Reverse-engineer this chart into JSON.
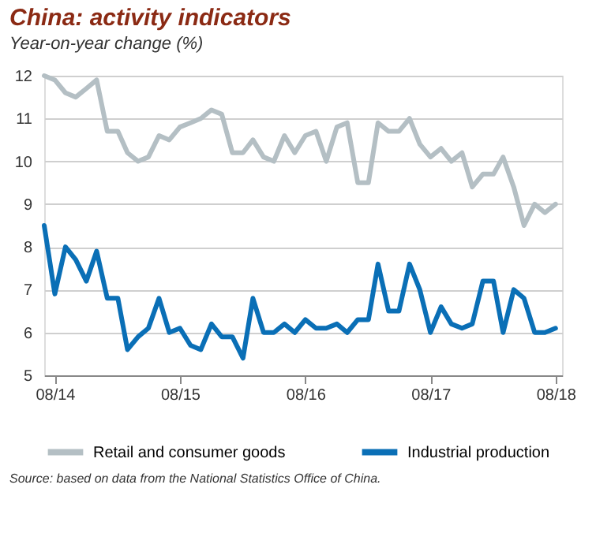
{
  "chart_data": {
    "type": "line",
    "title": "China: activity indicators",
    "subtitle": "Year-on-year change (%)",
    "x": [
      "2014-07",
      "2014-08",
      "2014-09",
      "2014-10",
      "2014-11",
      "2014-12",
      "2015-01",
      "2015-02",
      "2015-03",
      "2015-04",
      "2015-05",
      "2015-06",
      "2015-07",
      "2015-08",
      "2015-09",
      "2015-10",
      "2015-11",
      "2015-12",
      "2016-01",
      "2016-02",
      "2016-03",
      "2016-04",
      "2016-05",
      "2016-06",
      "2016-07",
      "2016-08",
      "2016-09",
      "2016-10",
      "2016-11",
      "2016-12",
      "2017-01",
      "2017-02",
      "2017-03",
      "2017-04",
      "2017-05",
      "2017-06",
      "2017-07",
      "2017-08",
      "2017-09",
      "2017-10",
      "2017-11",
      "2017-12",
      "2018-01",
      "2018-02",
      "2018-03",
      "2018-04",
      "2018-05",
      "2018-06",
      "2018-07",
      "2018-08"
    ],
    "series": [
      {
        "name": "Retail and consumer goods",
        "color": "#b4bfc4",
        "values": [
          12.0,
          11.9,
          11.6,
          11.5,
          11.7,
          11.9,
          10.7,
          10.7,
          10.2,
          10.0,
          10.1,
          10.6,
          10.5,
          10.8,
          10.9,
          11.0,
          11.2,
          11.1,
          10.2,
          10.2,
          10.5,
          10.1,
          10.0,
          10.6,
          10.2,
          10.6,
          10.7,
          10.0,
          10.8,
          10.9,
          9.5,
          9.5,
          10.9,
          10.7,
          10.7,
          11.0,
          10.4,
          10.1,
          10.3,
          10.0,
          10.2,
          9.4,
          9.7,
          9.7,
          10.1,
          9.4,
          8.5,
          9.0,
          8.8,
          9.0
        ]
      },
      {
        "name": "Industrial production",
        "color": "#0a6fb6",
        "values": [
          8.5,
          6.9,
          8.0,
          7.7,
          7.2,
          7.9,
          6.8,
          6.8,
          5.6,
          5.9,
          6.1,
          6.8,
          6.0,
          6.1,
          5.7,
          5.6,
          6.2,
          5.9,
          5.9,
          5.4,
          6.8,
          6.0,
          6.0,
          6.2,
          6.0,
          6.3,
          6.1,
          6.1,
          6.2,
          6.0,
          6.3,
          6.3,
          7.6,
          6.5,
          6.5,
          7.6,
          7.0,
          6.0,
          6.6,
          6.2,
          6.1,
          6.2,
          7.2,
          7.2,
          6.0,
          7.0,
          6.8,
          6.0,
          6.0,
          6.1
        ]
      }
    ],
    "xlim": [
      "2014-07",
      "2018-08-20"
    ],
    "xticks": [
      {
        "value": "2014-08",
        "label": "08/14"
      },
      {
        "value": "2015-08",
        "label": "08/15"
      },
      {
        "value": "2016-08",
        "label": "08/16"
      },
      {
        "value": "2017-08",
        "label": "08/17"
      },
      {
        "value": "2018-08",
        "label": "08/18"
      }
    ],
    "ylim": [
      5,
      12
    ],
    "yticks": [
      5,
      6,
      7,
      8,
      9,
      10,
      11,
      12
    ],
    "grid": "y",
    "legend": "bottom",
    "marker": "none",
    "line_style": "solid",
    "annotations": [
      "Source: based on data from the National Statistics Office of China."
    ]
  }
}
